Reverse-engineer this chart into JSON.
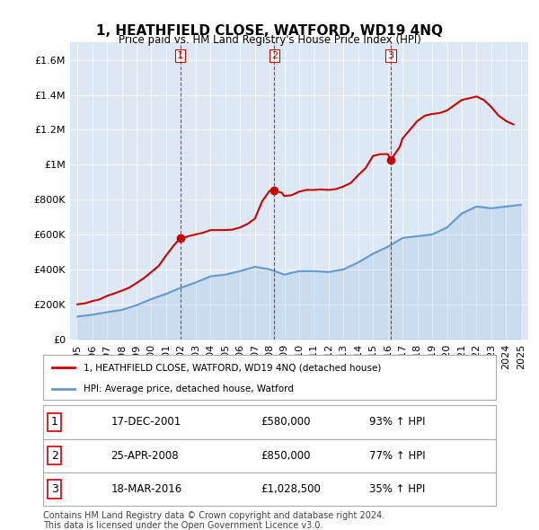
{
  "title": "1, HEATHFIELD CLOSE, WATFORD, WD19 4NQ",
  "subtitle": "Price paid vs. HM Land Registry's House Price Index (HPI)",
  "bg_color": "#dce9f5",
  "plot_bg_color": "#dce9f5",
  "legend_label_red": "1, HEATHFIELD CLOSE, WATFORD, WD19 4NQ (detached house)",
  "legend_label_blue": "HPI: Average price, detached house, Watford",
  "sale_dates": [
    2001.96,
    2008.32,
    2016.21
  ],
  "sale_prices": [
    580000,
    850000,
    1028500
  ],
  "sale_labels": [
    "1",
    "2",
    "3"
  ],
  "table_rows": [
    {
      "num": "1",
      "date": "17-DEC-2001",
      "price": "£580,000",
      "pct": "93% ↑ HPI"
    },
    {
      "num": "2",
      "date": "25-APR-2008",
      "price": "£850,000",
      "pct": "77% ↑ HPI"
    },
    {
      "num": "3",
      "date": "18-MAR-2016",
      "price": "£1,028,500",
      "pct": "35% ↑ HPI"
    }
  ],
  "footer": "Contains HM Land Registry data © Crown copyright and database right 2024.\nThis data is licensed under the Open Government Licence v3.0.",
  "red_line_color": "#cc0000",
  "blue_line_color": "#6699cc",
  "vline_color": "#cc0000",
  "ylim": [
    0,
    1700000
  ],
  "yticks": [
    0,
    200000,
    400000,
    600000,
    800000,
    1000000,
    1200000,
    1400000,
    1600000
  ],
  "xlim_start": 1994.5,
  "xlim_end": 2025.5,
  "hpi_data": {
    "years": [
      1995,
      1996,
      1997,
      1998,
      1999,
      2000,
      2001,
      2002,
      2003,
      2004,
      2005,
      2006,
      2007,
      2008,
      2009,
      2010,
      2011,
      2012,
      2013,
      2014,
      2015,
      2016,
      2017,
      2018,
      2019,
      2020,
      2021,
      2022,
      2023,
      2024,
      2025
    ],
    "prices": [
      130000,
      140000,
      155000,
      168000,
      195000,
      230000,
      260000,
      295000,
      325000,
      360000,
      370000,
      390000,
      415000,
      400000,
      370000,
      390000,
      390000,
      385000,
      400000,
      440000,
      490000,
      530000,
      580000,
      590000,
      600000,
      640000,
      720000,
      760000,
      750000,
      760000,
      770000
    ]
  },
  "property_data": {
    "years": [
      1995,
      1995.5,
      1996,
      1996.5,
      1997,
      1997.5,
      1998,
      1998.5,
      1999,
      1999.5,
      2000,
      2000.5,
      2001,
      2001.5,
      2001.96,
      2002.2,
      2002.5,
      2003,
      2003.5,
      2004,
      2004.5,
      2005,
      2005.5,
      2006,
      2006.5,
      2007,
      2007.5,
      2008,
      2008.32,
      2008.8,
      2009,
      2009.5,
      2010,
      2010.5,
      2011,
      2011.5,
      2012,
      2012.5,
      2013,
      2013.5,
      2014,
      2014.5,
      2015,
      2015.5,
      2016,
      2016.21,
      2016.8,
      2017,
      2017.5,
      2018,
      2018.5,
      2019,
      2019.5,
      2020,
      2020.5,
      2021,
      2021.5,
      2022,
      2022.5,
      2023,
      2023.5,
      2024,
      2024.5
    ],
    "prices": [
      200000,
      205000,
      218000,
      228000,
      248000,
      262000,
      278000,
      295000,
      322000,
      350000,
      385000,
      420000,
      480000,
      535000,
      580000,
      580000,
      590000,
      600000,
      610000,
      625000,
      625000,
      625000,
      628000,
      640000,
      660000,
      690000,
      790000,
      850000,
      850000,
      840000,
      820000,
      825000,
      845000,
      855000,
      855000,
      858000,
      855000,
      860000,
      875000,
      895000,
      940000,
      980000,
      1050000,
      1060000,
      1060000,
      1028500,
      1100000,
      1150000,
      1200000,
      1250000,
      1280000,
      1290000,
      1295000,
      1310000,
      1340000,
      1370000,
      1380000,
      1390000,
      1370000,
      1330000,
      1280000,
      1250000,
      1230000
    ]
  }
}
